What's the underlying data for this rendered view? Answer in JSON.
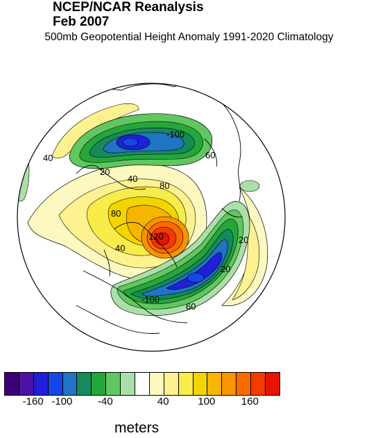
{
  "header": {
    "source": "NCEP/NCAR Reanalysis",
    "date": "Feb 2007",
    "subtitle": "500mb Geopotential Height Anomaly  1991-2020 Climatology"
  },
  "map": {
    "projection": "north-polar-stereographic",
    "variable": "500mb geopotential height anomaly",
    "contour_labels": [
      "-100",
      "20",
      "40",
      "60",
      "80",
      "80",
      "40",
      "120",
      "20",
      "20",
      "60",
      "-100",
      "40"
    ]
  },
  "colorbar": {
    "colors": [
      "#3d007a",
      "#4a12a5",
      "#2020d8",
      "#1446e8",
      "#1f74c4",
      "#178a5c",
      "#25a63a",
      "#60c760",
      "#aae0a8",
      "#ffffff",
      "#fdf8c0",
      "#fdf190",
      "#f7ec4a",
      "#f2d400",
      "#f5b500",
      "#f89400",
      "#fa6a00",
      "#f43a00",
      "#e61400"
    ],
    "tick_labels": [
      "-160",
      "-100",
      "-40",
      "40",
      "100",
      "160"
    ],
    "units": "meters"
  }
}
